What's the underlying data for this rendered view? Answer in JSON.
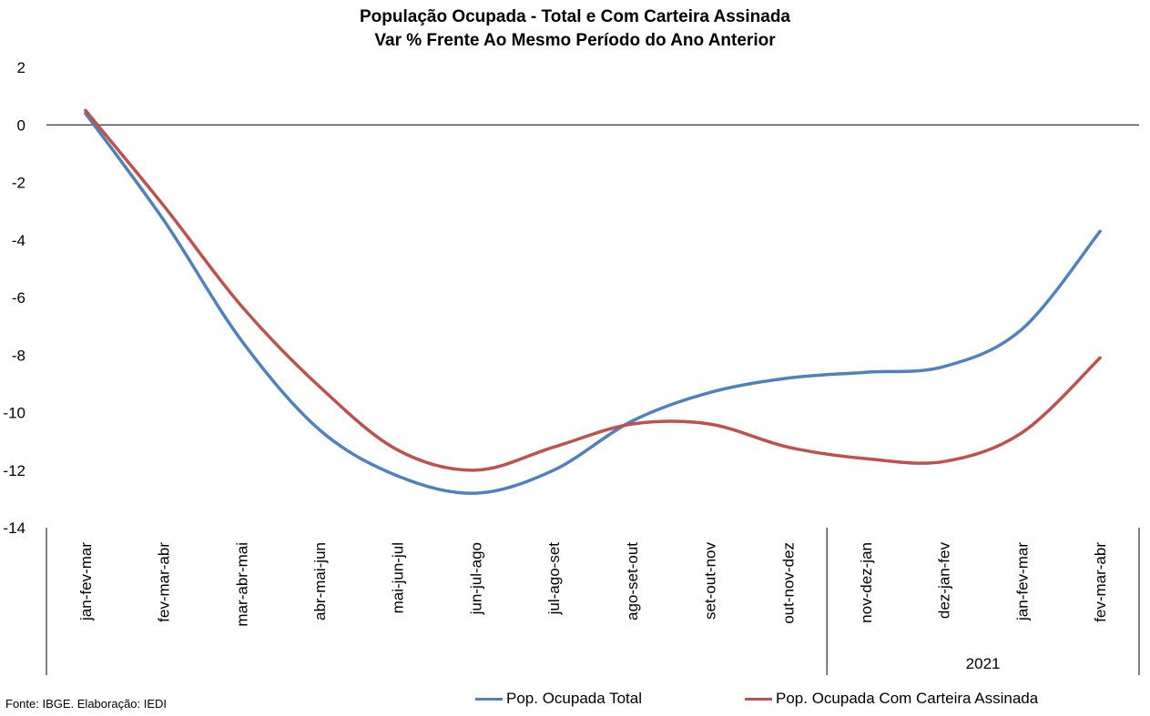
{
  "chart_data": {
    "type": "line",
    "title": "População Ocupada - Total e Com Carteira Assinada",
    "subtitle": "Var % Frente Ao Mesmo Período do Ano Anterior",
    "xlabel": "",
    "ylabel": "",
    "categories": [
      "jan-fev-mar",
      "fev-mar-abr",
      "mar-abr-mai",
      "abr-mai-jun",
      "mai-jun-jul",
      "jun-jul-ago",
      "jul-ago-set",
      "ago-set-out",
      "set-out-nov",
      "out-nov-dez",
      "nov-dez-jan",
      "dez-jan-fev",
      "jan-fev-mar",
      "fev-mar-abr"
    ],
    "group_labels": [
      {
        "label": "2021",
        "from": 10,
        "to": 13
      }
    ],
    "yticks": [
      2,
      0,
      -2,
      -4,
      -6,
      -8,
      -10,
      -12,
      -14
    ],
    "ylim": [
      -14,
      2
    ],
    "grid": false,
    "legend_position": "bottom",
    "series": [
      {
        "name": "Pop. Ocupada Total",
        "color": "#4f81bd",
        "values": [
          0.4,
          -3.3,
          -7.5,
          -10.6,
          -12.2,
          -12.8,
          -12.0,
          -10.3,
          -9.3,
          -8.8,
          -8.6,
          -8.4,
          -7.1,
          -3.7
        ]
      },
      {
        "name": "Pop. Ocupada Com Carteira Assinada",
        "color": "#c0504d",
        "values": [
          0.5,
          -2.8,
          -6.3,
          -9.1,
          -11.3,
          -12.0,
          -11.2,
          -10.4,
          -10.4,
          -11.2,
          -11.6,
          -11.7,
          -10.7,
          -8.1
        ]
      }
    ]
  },
  "source": "Fonte: IBGE. Elaboração: IEDI"
}
